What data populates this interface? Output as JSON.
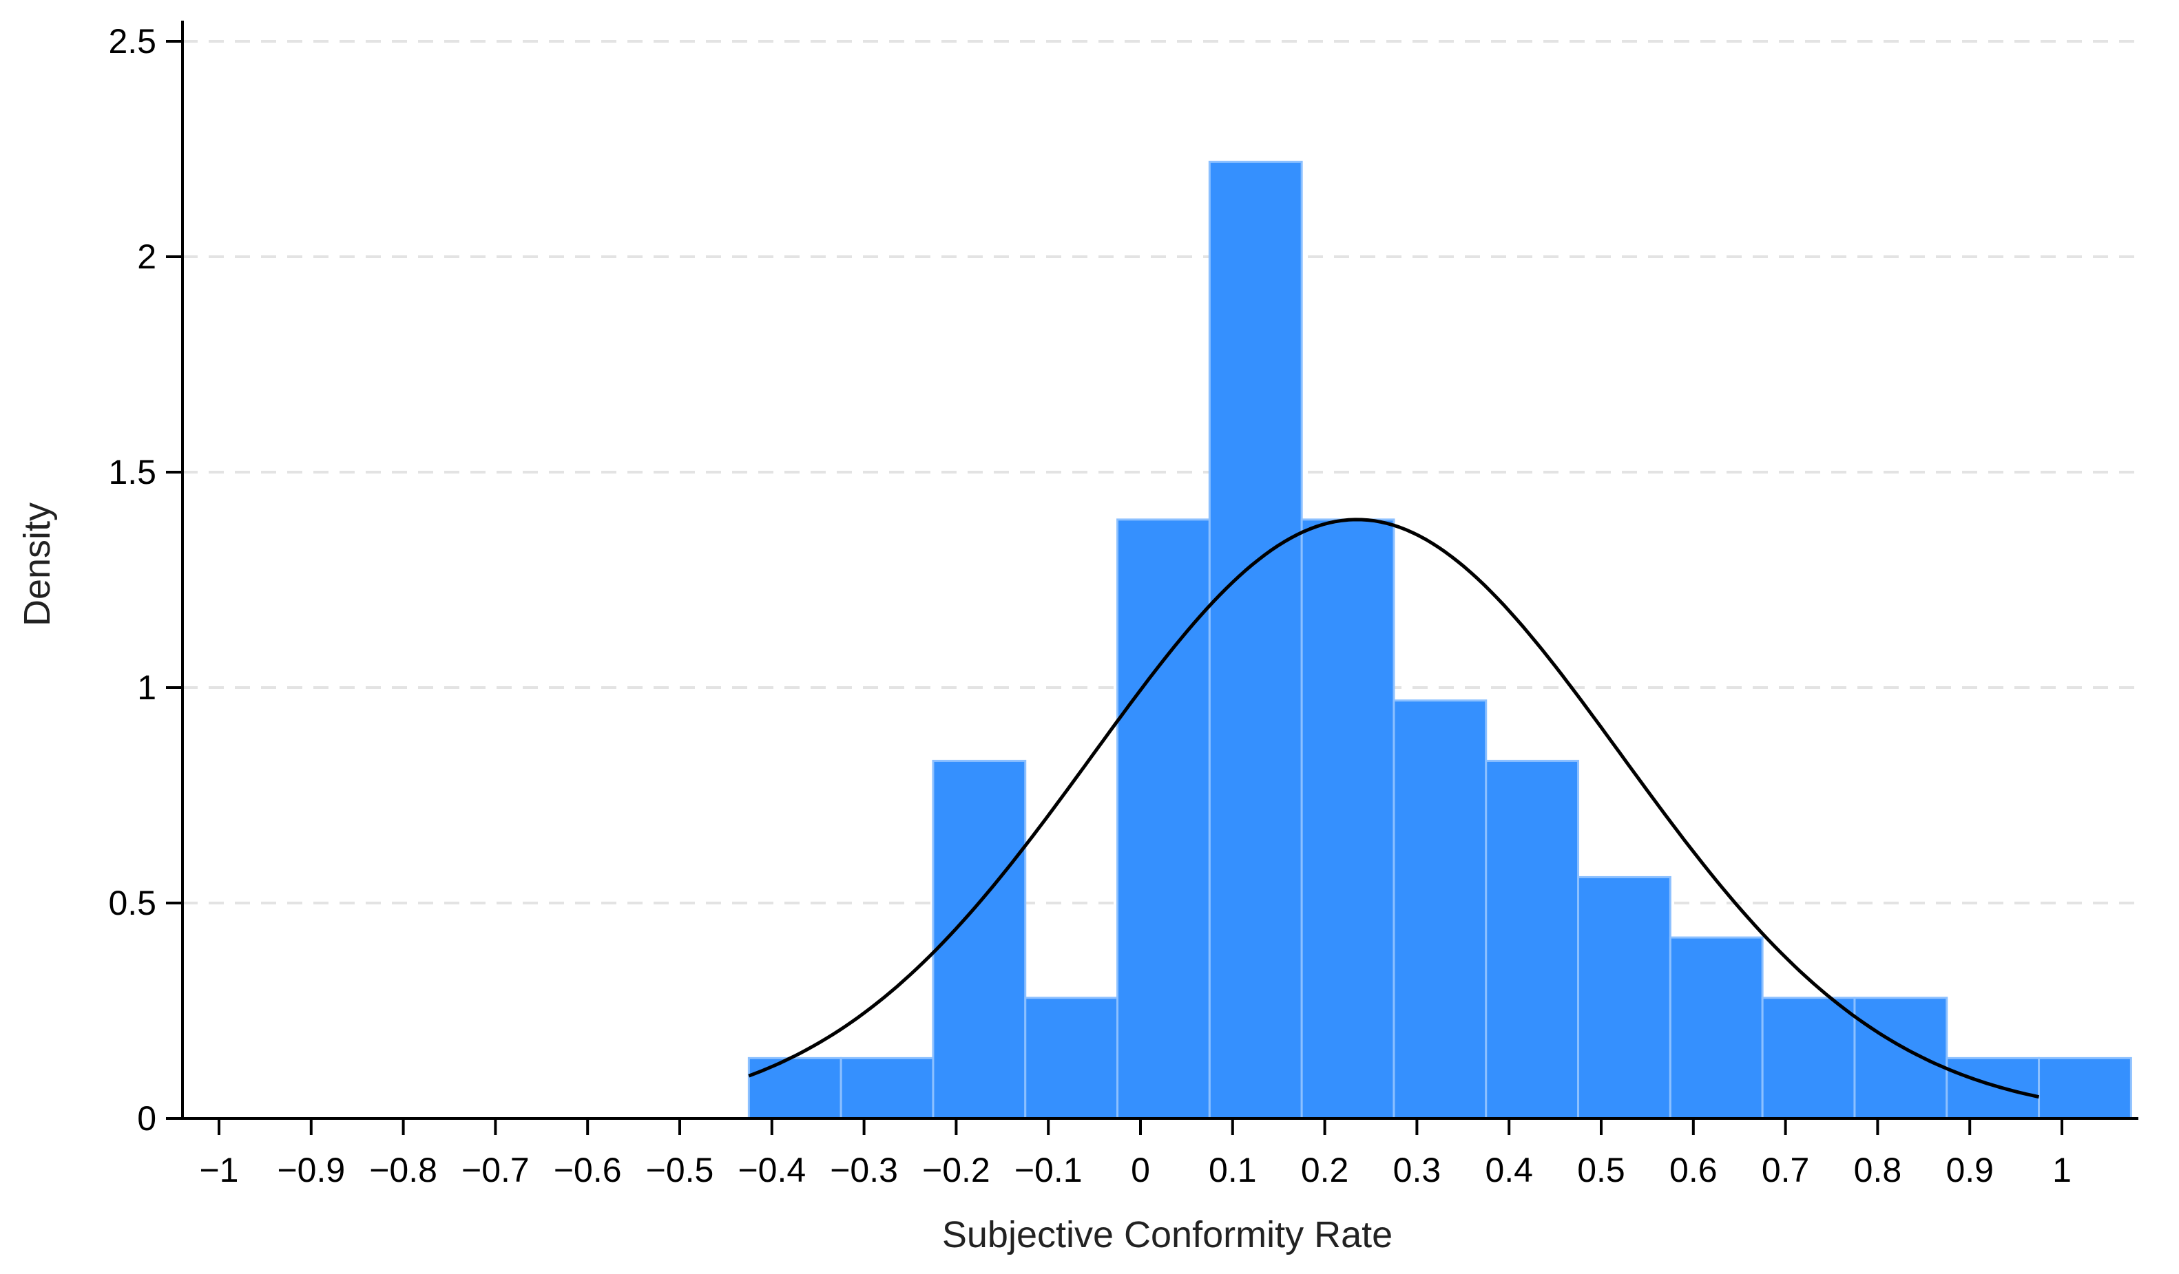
{
  "chart_data": {
    "type": "bar",
    "xlabel": "Subjective Conformity Rate",
    "ylabel": "Density",
    "xlim": [
      -1.05,
      1.08
    ],
    "ylim": [
      0,
      2.5
    ],
    "x_ticks": [
      -1,
      -0.9,
      -0.8,
      -0.7,
      -0.6,
      -0.5,
      -0.4,
      -0.3,
      -0.2,
      -0.1,
      0,
      0.1,
      0.2,
      0.3,
      0.4,
      0.5,
      0.6,
      0.7,
      0.8,
      0.9,
      1
    ],
    "x_tick_labels": [
      "−1",
      "−0.9",
      "−0.8",
      "−0.7",
      "−0.6",
      "−0.5",
      "−0.4",
      "−0.3",
      "−0.2",
      "−0.1",
      "0",
      "0.1",
      "0.2",
      "0.3",
      "0.4",
      "0.5",
      "0.6",
      "0.7",
      "0.8",
      "0.9",
      "1"
    ],
    "y_ticks": [
      0,
      0.5,
      1,
      1.5,
      2,
      2.5
    ],
    "y_tick_labels": [
      "0",
      "0.5",
      "1",
      "1.5",
      "2",
      "2.5"
    ],
    "grid": "horizontal dashed",
    "bin_width": 0.1,
    "bins": [
      {
        "start": -0.425,
        "end": -0.325,
        "density": 0.14
      },
      {
        "start": -0.325,
        "end": -0.225,
        "density": 0.14
      },
      {
        "start": -0.225,
        "end": -0.125,
        "density": 0.83
      },
      {
        "start": -0.125,
        "end": -0.025,
        "density": 0.28
      },
      {
        "start": -0.025,
        "end": 0.075,
        "density": 1.39
      },
      {
        "start": 0.075,
        "end": 0.175,
        "density": 2.22
      },
      {
        "start": 0.175,
        "end": 0.275,
        "density": 1.39
      },
      {
        "start": 0.275,
        "end": 0.375,
        "density": 0.97
      },
      {
        "start": 0.375,
        "end": 0.475,
        "density": 0.83
      },
      {
        "start": 0.475,
        "end": 0.575,
        "density": 0.56
      },
      {
        "start": 0.575,
        "end": 0.675,
        "density": 0.42
      },
      {
        "start": 0.675,
        "end": 0.775,
        "density": 0.28
      },
      {
        "start": 0.775,
        "end": 0.875,
        "density": 0.28
      },
      {
        "start": 0.875,
        "end": 0.975,
        "density": 0.14
      },
      {
        "start": 0.975,
        "end": 1.075,
        "density": 0.14
      }
    ],
    "normal_curve": {
      "mean": 0.235,
      "sd": 0.287,
      "x_range": [
        -0.425,
        0.975
      ]
    },
    "colors": {
      "bar_fill": "#3590FE",
      "bar_edge": "#8CC0FF",
      "curve": "#000000",
      "grid": "#E3E3E3",
      "axis": "#000000"
    }
  }
}
